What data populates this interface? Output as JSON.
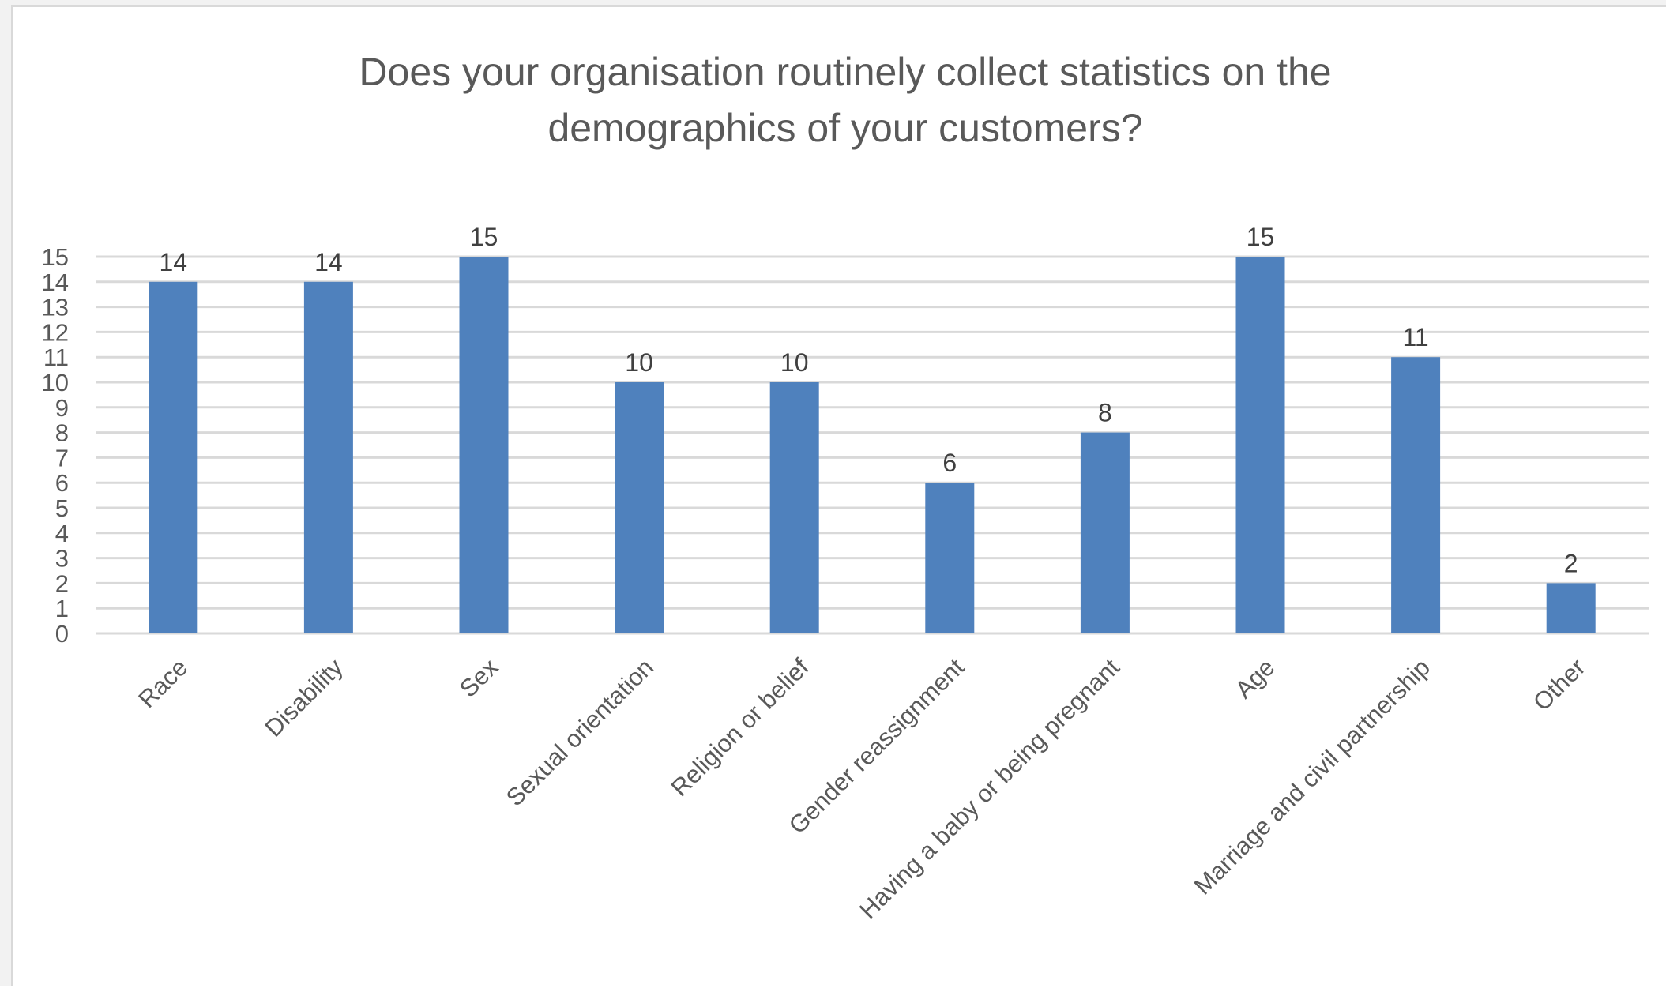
{
  "chart_data": {
    "type": "bar",
    "title_lines": [
      "Does your organisation routinely collect statistics on the",
      "demographics of your customers?"
    ],
    "categories": [
      "Race",
      "Disability",
      "Sex",
      "Sexual orientation",
      "Religion or belief",
      "Gender reassignment",
      "Having a baby or being pregnant",
      "Age",
      "Marriage and civil partnership",
      "Other"
    ],
    "values": [
      14,
      14,
      15,
      10,
      10,
      6,
      8,
      15,
      11,
      2
    ],
    "ylim": [
      0,
      15
    ],
    "yticks": [
      0,
      1,
      2,
      3,
      4,
      5,
      6,
      7,
      8,
      9,
      10,
      11,
      12,
      13,
      14,
      15
    ],
    "xlabel": "",
    "ylabel": "",
    "grid": true,
    "data_labels": true,
    "legend": "none",
    "bar_color": "#4f81bd"
  }
}
